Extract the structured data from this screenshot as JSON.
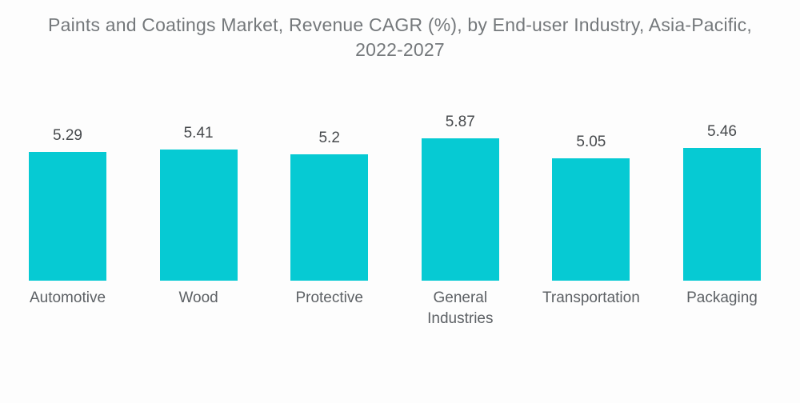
{
  "title": "Paints and Coatings Market, Revenue CAGR (%), by End-user Industry, Asia-Pacific, 2022-2027",
  "chart_data": {
    "type": "bar",
    "title": "Paints and Coatings Market, Revenue CAGR (%), by End-user Industry, Asia-Pacific, 2022-2027",
    "categories": [
      "Automotive",
      "Wood",
      "Protective",
      "General Industries",
      "Transportation",
      "Packaging"
    ],
    "values": [
      5.29,
      5.41,
      5.2,
      5.87,
      5.05,
      5.46
    ],
    "value_labels": [
      "5.29",
      "5.41",
      "5.2",
      "5.87",
      "5.05",
      "5.46"
    ],
    "xlabel": "",
    "ylabel": "",
    "grid": false,
    "legend": false,
    "data_labels_shown": true,
    "axes_shown": false,
    "bar_color": "#06cad3"
  },
  "colors": {
    "bar": "#06cad3",
    "background": "#fdfdfd",
    "title_text": "#74787b",
    "value_text": "#474a4d",
    "category_text": "#5d6165"
  }
}
